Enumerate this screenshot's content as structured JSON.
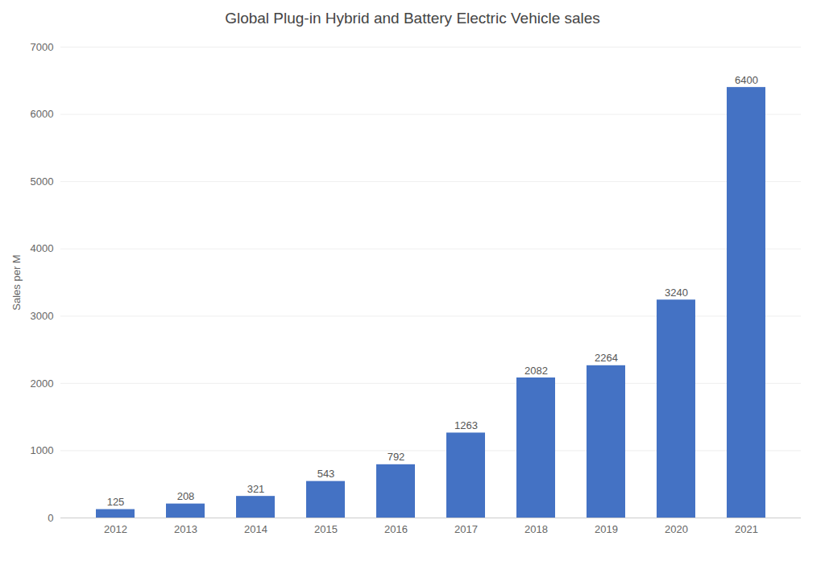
{
  "chart_data": {
    "type": "bar",
    "title": "Global Plug-in Hybrid and Battery Electric Vehicle sales",
    "ylabel": "Sales per M",
    "categories": [
      "2012",
      "2013",
      "2014",
      "2015",
      "2016",
      "2017",
      "2018",
      "2019",
      "2020",
      "2021"
    ],
    "values": [
      125,
      208,
      321,
      543,
      792,
      1263,
      2082,
      2264,
      3240,
      6400
    ],
    "color": "#4472C4",
    "ylim": [
      0,
      7000
    ],
    "yticks": [
      0,
      1000,
      2000,
      3000,
      4000,
      5000,
      6000,
      7000
    ],
    "grid": true,
    "data_labels": true
  }
}
